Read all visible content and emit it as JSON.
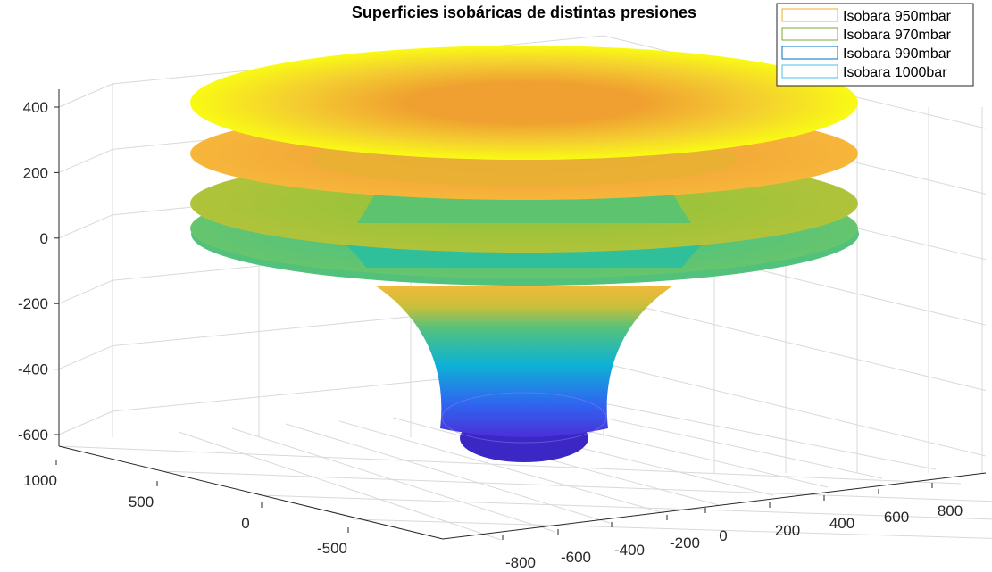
{
  "chart_data": {
    "type": "surface",
    "title": "Superficies isobáricas de distintas presiones",
    "xlabel": "",
    "ylabel": "",
    "zlabel": "",
    "grid": true,
    "legend_position": "top-right",
    "x_ticks": [
      "-800",
      "-600",
      "-400",
      "-200",
      "0",
      "200",
      "400",
      "600",
      "800"
    ],
    "y_ticks": [
      "-500",
      "0",
      "500",
      "1000"
    ],
    "z_ticks": [
      "-600",
      "-400",
      "-200",
      "0",
      "200",
      "400"
    ],
    "xlim": [
      -900,
      900
    ],
    "ylim": [
      -900,
      1000
    ],
    "zlim": [
      -650,
      450
    ],
    "series": [
      {
        "name": "Isobara 950mbar",
        "edge_color": "#EDB120",
        "outer_height": 410,
        "bottom_height": -600,
        "bottom_radius": 150,
        "outer_radius": 900
      },
      {
        "name": "Isobara 970mbar",
        "edge_color": "#77AC30",
        "outer_height": 220,
        "bottom_height": -400,
        "bottom_radius": 190,
        "outer_radius": 900
      },
      {
        "name": "Isobara 990mbar",
        "edge_color": "#0072BD",
        "outer_height": 100,
        "bottom_height": -160,
        "bottom_radius": 240,
        "outer_radius": 900
      },
      {
        "name": "Isobara 1000bar",
        "edge_color": "#4DBEEE",
        "outer_height": 20,
        "bottom_height": -80,
        "bottom_radius": 270,
        "outer_radius": 900
      }
    ],
    "bowl_bottom": -680,
    "colormap": "parula"
  }
}
